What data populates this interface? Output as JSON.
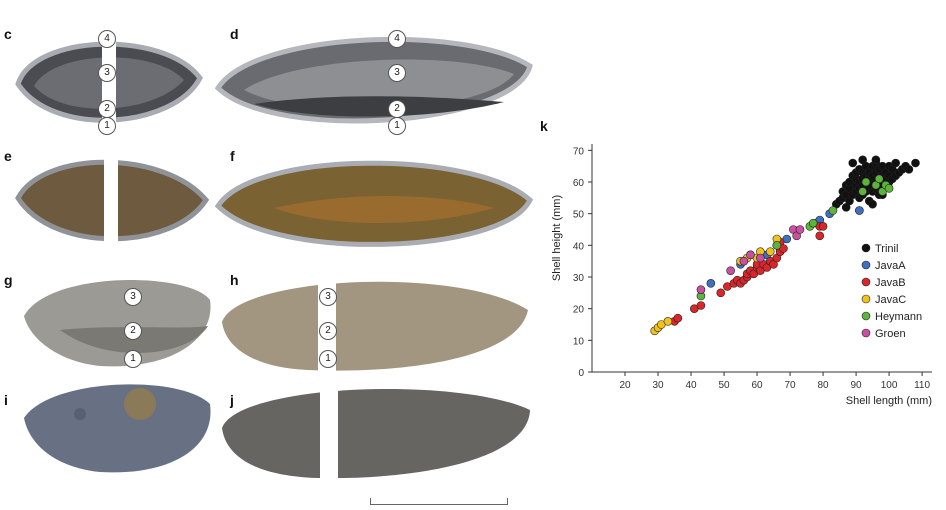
{
  "panels": {
    "c": {
      "letter": "c",
      "markers": [
        "4",
        "3",
        "2",
        "1"
      ]
    },
    "d": {
      "letter": "d",
      "markers": [
        "4",
        "3",
        "2",
        "1"
      ]
    },
    "e": {
      "letter": "e"
    },
    "f": {
      "letter": "f"
    },
    "g": {
      "letter": "g",
      "markers": [
        "3",
        "2",
        "1"
      ]
    },
    "h": {
      "letter": "h",
      "markers": [
        "3",
        "2",
        "1"
      ]
    },
    "i": {
      "letter": "i"
    },
    "j": {
      "letter": "j"
    },
    "k": {
      "letter": "k"
    }
  },
  "colors": {
    "Trinil": "#111111",
    "JavaA": "#3f6fc0",
    "JavaB": "#d9262b",
    "JavaC": "#f2c21b",
    "Heymann": "#5db43a",
    "Groen": "#c94fa0"
  },
  "chart_data": {
    "type": "scatter",
    "xlabel": "Shell length (mm)",
    "ylabel": "Shell height  (mm)",
    "xlim": [
      10,
      113
    ],
    "ylim": [
      0,
      72
    ],
    "xticks": [
      20,
      30,
      40,
      50,
      60,
      70,
      80,
      90,
      100,
      110
    ],
    "yticks": [
      0,
      10,
      20,
      30,
      40,
      50,
      60,
      70
    ],
    "legend_position": "right",
    "series": [
      {
        "name": "Trinil",
        "color": "#111111",
        "points": [
          [
            84,
            53
          ],
          [
            85,
            54
          ],
          [
            86,
            55
          ],
          [
            86,
            57
          ],
          [
            87,
            56
          ],
          [
            87,
            59
          ],
          [
            88,
            54
          ],
          [
            88,
            58
          ],
          [
            88,
            60
          ],
          [
            89,
            56
          ],
          [
            89,
            62
          ],
          [
            89,
            66
          ],
          [
            90,
            57
          ],
          [
            90,
            59
          ],
          [
            90,
            61
          ],
          [
            90,
            63
          ],
          [
            91,
            55
          ],
          [
            91,
            58
          ],
          [
            91,
            60
          ],
          [
            91,
            64
          ],
          [
            92,
            56
          ],
          [
            92,
            59
          ],
          [
            92,
            61
          ],
          [
            92,
            63
          ],
          [
            93,
            57
          ],
          [
            93,
            60
          ],
          [
            93,
            62
          ],
          [
            93,
            65
          ],
          [
            94,
            54
          ],
          [
            94,
            58
          ],
          [
            94,
            61
          ],
          [
            94,
            63
          ],
          [
            95,
            57
          ],
          [
            95,
            59
          ],
          [
            95,
            62
          ],
          [
            95,
            65
          ],
          [
            96,
            58
          ],
          [
            96,
            60
          ],
          [
            96,
            63
          ],
          [
            96,
            66
          ],
          [
            97,
            56
          ],
          [
            97,
            59
          ],
          [
            97,
            61
          ],
          [
            97,
            64
          ],
          [
            98,
            58
          ],
          [
            98,
            62
          ],
          [
            98,
            65
          ],
          [
            99,
            59
          ],
          [
            99,
            61
          ],
          [
            99,
            63
          ],
          [
            100,
            60
          ],
          [
            100,
            62
          ],
          [
            100,
            65
          ],
          [
            101,
            61
          ],
          [
            101,
            64
          ],
          [
            102,
            62
          ],
          [
            102,
            66
          ],
          [
            103,
            63
          ],
          [
            104,
            64
          ],
          [
            105,
            65
          ],
          [
            106,
            64
          ],
          [
            108,
            66
          ],
          [
            91,
            51
          ],
          [
            95,
            53
          ],
          [
            87,
            52
          ],
          [
            98,
            56
          ],
          [
            92,
            67
          ],
          [
            96,
            67
          ]
        ]
      },
      {
        "name": "JavaA",
        "color": "#3f6fc0",
        "points": [
          [
            46,
            28
          ],
          [
            55,
            34
          ],
          [
            58,
            37
          ],
          [
            63,
            37
          ],
          [
            66,
            40
          ],
          [
            67,
            39
          ],
          [
            69,
            42
          ],
          [
            78,
            47
          ],
          [
            79,
            48
          ],
          [
            82,
            50
          ],
          [
            91,
            51
          ]
        ]
      },
      {
        "name": "JavaB",
        "color": "#d9262b",
        "points": [
          [
            35,
            16
          ],
          [
            36,
            17
          ],
          [
            41,
            20
          ],
          [
            43,
            21
          ],
          [
            49,
            25
          ],
          [
            51,
            27
          ],
          [
            53,
            28
          ],
          [
            54,
            29
          ],
          [
            55,
            28
          ],
          [
            56,
            29
          ],
          [
            57,
            30
          ],
          [
            57,
            31
          ],
          [
            58,
            32
          ],
          [
            59,
            31
          ],
          [
            60,
            33
          ],
          [
            60,
            34
          ],
          [
            61,
            32
          ],
          [
            62,
            34
          ],
          [
            63,
            33
          ],
          [
            64,
            35
          ],
          [
            65,
            34
          ],
          [
            66,
            36
          ],
          [
            67,
            38
          ],
          [
            67,
            41
          ],
          [
            68,
            39
          ],
          [
            79,
            43
          ],
          [
            79,
            46
          ],
          [
            80,
            46
          ]
        ]
      },
      {
        "name": "JavaC",
        "color": "#f2c21b",
        "points": [
          [
            29,
            13
          ],
          [
            30,
            14
          ],
          [
            31,
            15
          ],
          [
            33,
            16
          ],
          [
            55,
            35
          ],
          [
            57,
            36
          ],
          [
            60,
            36
          ],
          [
            61,
            38
          ],
          [
            64,
            38
          ],
          [
            66,
            42
          ]
        ]
      },
      {
        "name": "Heymann",
        "color": "#5db43a",
        "points": [
          [
            43,
            24
          ],
          [
            66,
            40
          ],
          [
            76,
            46
          ],
          [
            77,
            47
          ],
          [
            83,
            51
          ],
          [
            92,
            57
          ],
          [
            93,
            60
          ],
          [
            96,
            59
          ],
          [
            97,
            61
          ],
          [
            98,
            57
          ],
          [
            99,
            59
          ],
          [
            100,
            58
          ]
        ]
      },
      {
        "name": "Groen",
        "color": "#c94fa0",
        "points": [
          [
            43,
            26
          ],
          [
            52,
            32
          ],
          [
            56,
            35
          ],
          [
            58,
            37
          ],
          [
            61,
            36
          ],
          [
            71,
            45
          ],
          [
            72,
            43
          ],
          [
            73,
            45
          ]
        ]
      }
    ]
  }
}
